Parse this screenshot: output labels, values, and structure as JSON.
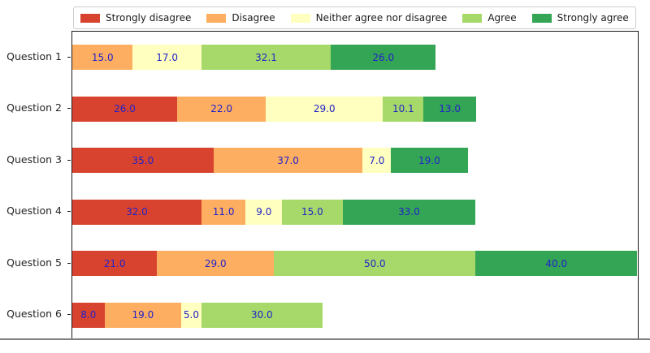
{
  "chart_data": {
    "type": "bar",
    "orientation": "horizontal",
    "stacked": true,
    "title": "",
    "xlabel": "",
    "ylabel": "",
    "xlim": [
      0,
      140.6
    ],
    "grid": false,
    "legend_position": "top",
    "value_label_color": "#2323c8",
    "categories": [
      "Question 1",
      "Question 2",
      "Question 3",
      "Question 4",
      "Question 5",
      "Question 6"
    ],
    "series": [
      {
        "name": "Strongly disagree",
        "color": "#d8432f",
        "values": [
          0,
          26.0,
          35.0,
          32.0,
          21.0,
          8.0
        ]
      },
      {
        "name": "Disagree",
        "color": "#fdae61",
        "values": [
          15.0,
          22.0,
          37.0,
          11.0,
          29.0,
          19.0
        ]
      },
      {
        "name": "Neither agree nor disagree",
        "color": "#ffffbf",
        "values": [
          17.0,
          29.0,
          7.0,
          9.0,
          0,
          5.0
        ]
      },
      {
        "name": "Agree",
        "color": "#a6d96a",
        "values": [
          32.1,
          10.1,
          0,
          15.0,
          50.0,
          30.0
        ]
      },
      {
        "name": "Strongly agree",
        "color": "#34a455",
        "values": [
          26.0,
          13.0,
          19.0,
          33.0,
          40.0,
          0
        ]
      }
    ]
  },
  "legend": {
    "items": [
      {
        "label": "Strongly disagree",
        "color": "#d8432f"
      },
      {
        "label": "Disagree",
        "color": "#fdae61"
      },
      {
        "label": "Neither agree nor disagree",
        "color": "#ffffbf"
      },
      {
        "label": "Agree",
        "color": "#a6d96a"
      },
      {
        "label": "Strongly agree",
        "color": "#34a455"
      }
    ]
  }
}
